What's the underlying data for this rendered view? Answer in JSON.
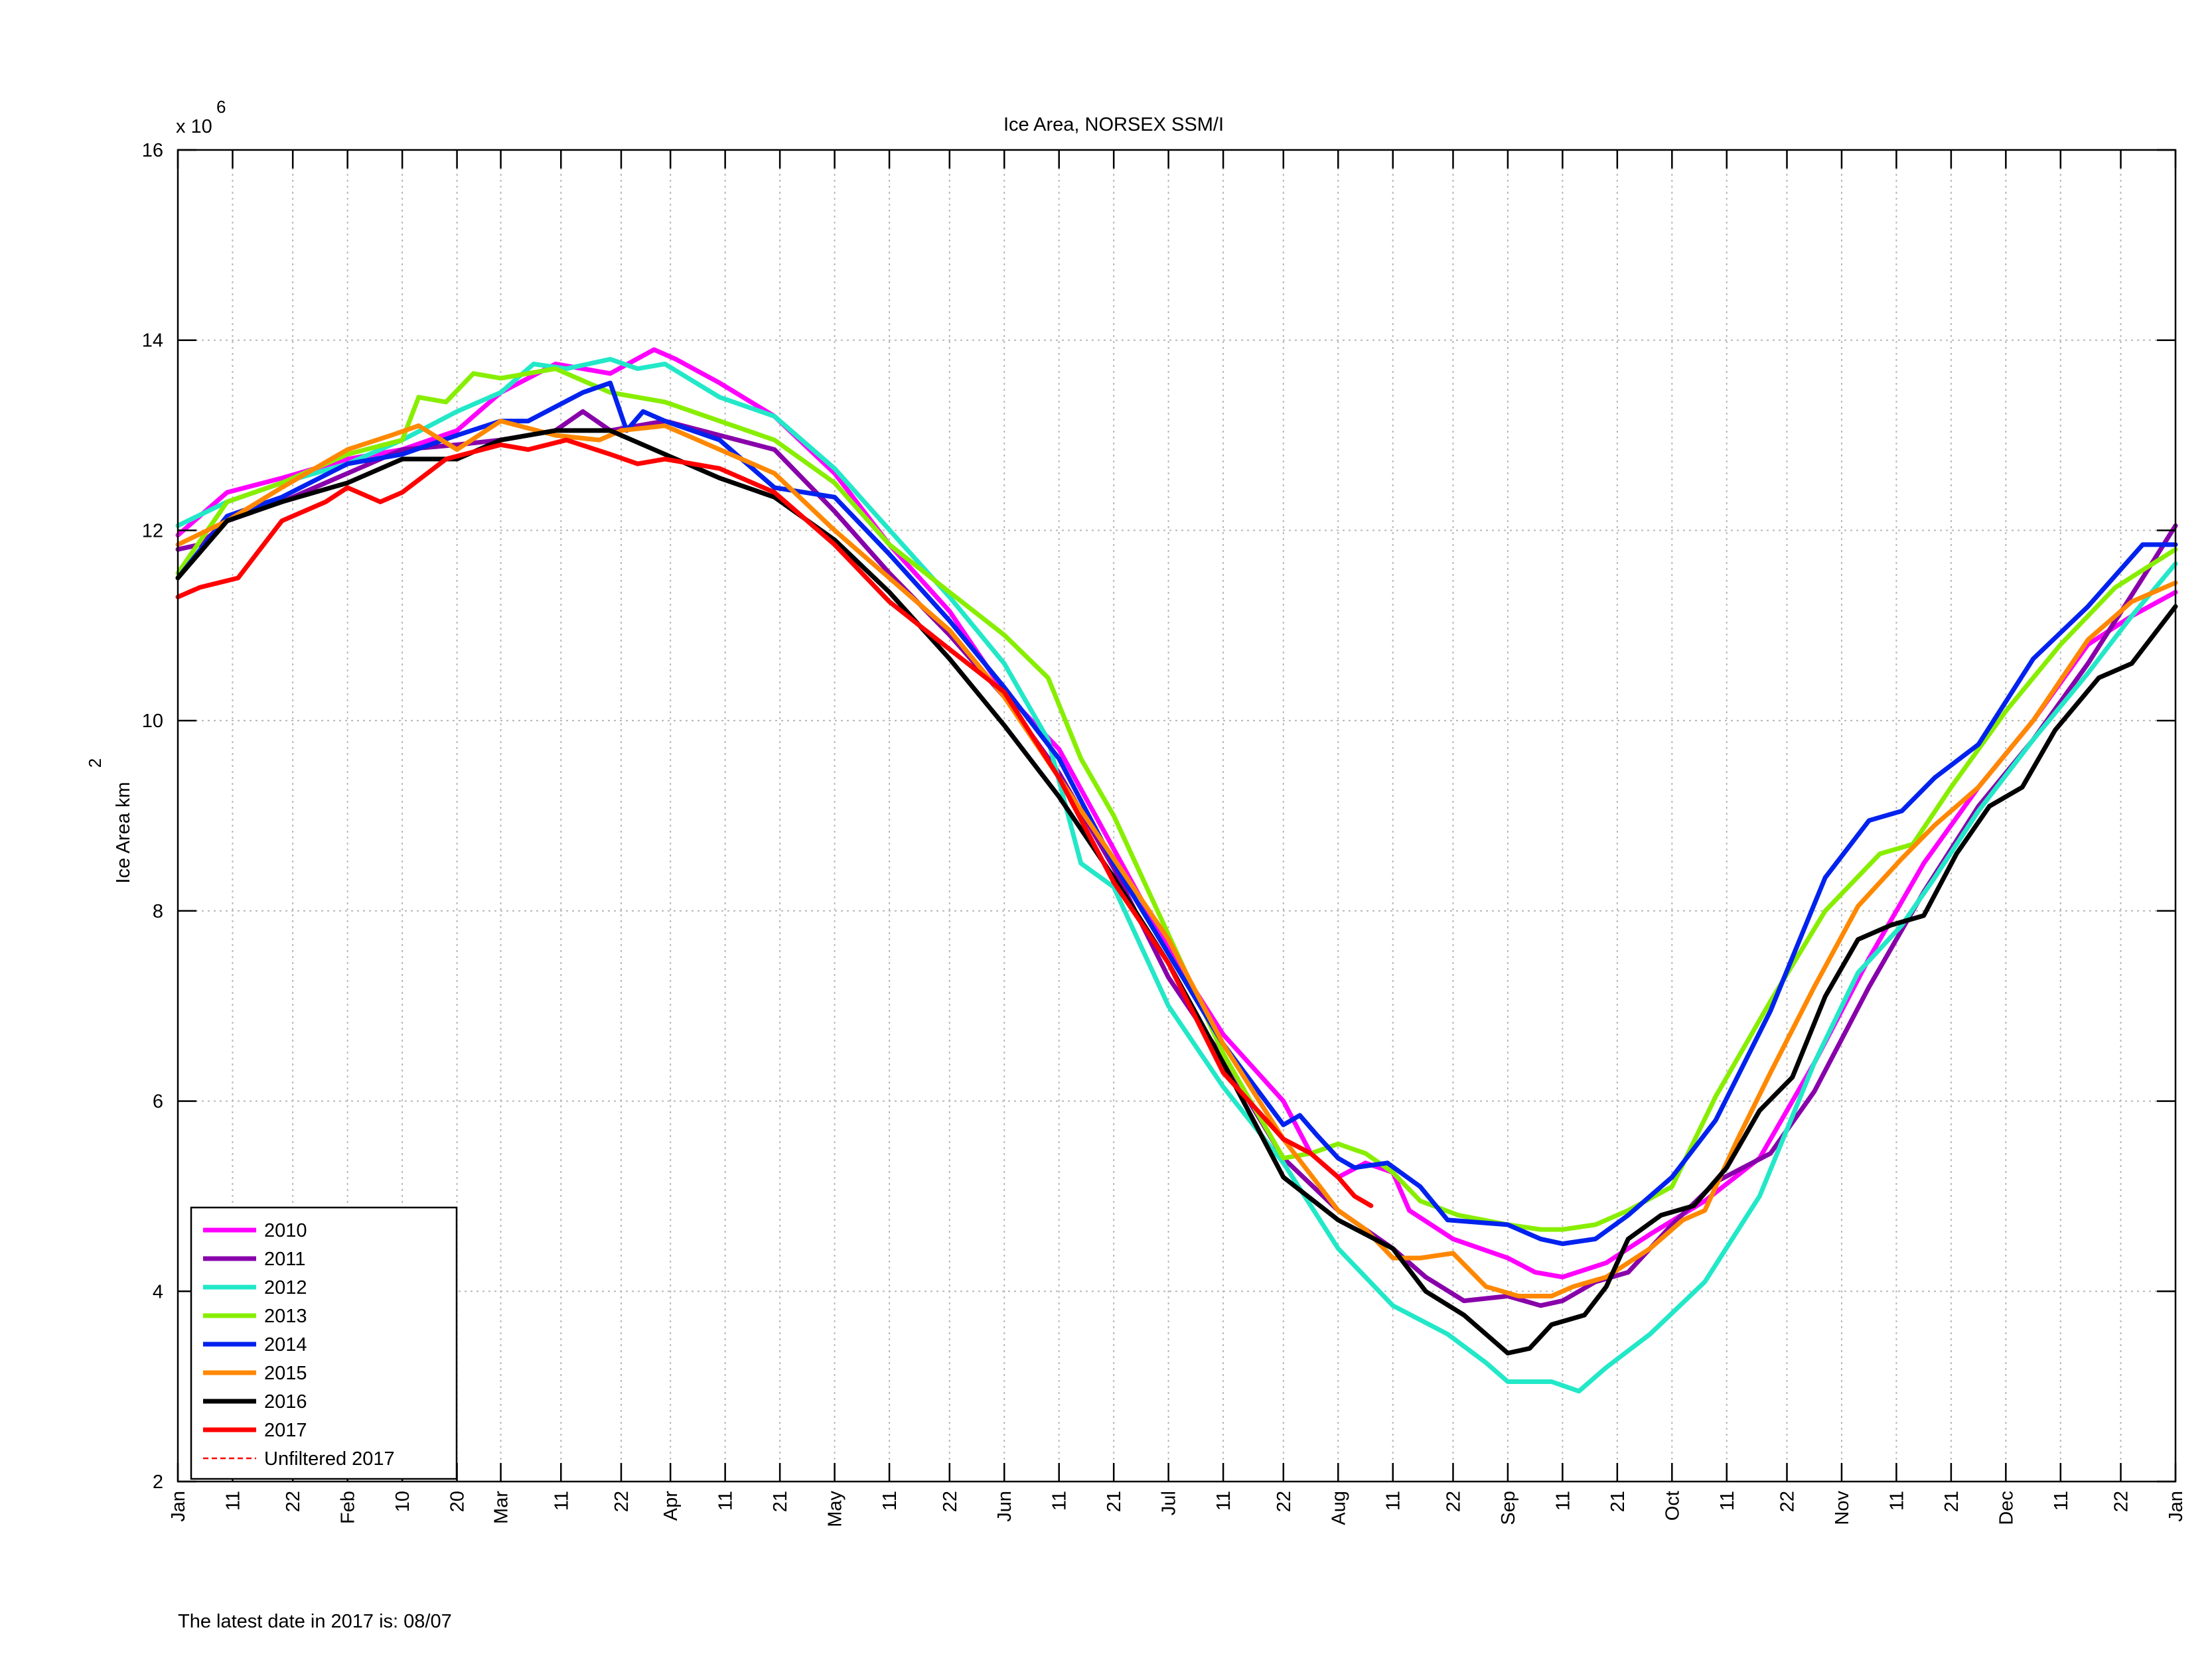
{
  "footer_note": "The latest date in 2017 is: 08/07",
  "chart_data": {
    "type": "line",
    "title": "Ice Area, NORSEX SSM/I",
    "xlabel": "",
    "ylabel": "Ice Area km",
    "ylabel_superscript": "2",
    "y_multiplier_label": "x 10",
    "y_multiplier_exponent": "6",
    "x_unit": "day of year",
    "xlim": [
      1,
      366
    ],
    "ylim": [
      2,
      16
    ],
    "y_unit_scale": 1000000,
    "grid": true,
    "legend_position": "bottom-left",
    "x_ticks": [
      {
        "day": 1,
        "label": "Jan"
      },
      {
        "day": 11,
        "label": "11"
      },
      {
        "day": 22,
        "label": "22"
      },
      {
        "day": 32,
        "label": "Feb"
      },
      {
        "day": 42,
        "label": "10"
      },
      {
        "day": 52,
        "label": "20"
      },
      {
        "day": 60,
        "label": "Mar"
      },
      {
        "day": 71,
        "label": "11"
      },
      {
        "day": 82,
        "label": "22"
      },
      {
        "day": 91,
        "label": "Apr"
      },
      {
        "day": 101,
        "label": "11"
      },
      {
        "day": 111,
        "label": "21"
      },
      {
        "day": 121,
        "label": "May"
      },
      {
        "day": 131,
        "label": "11"
      },
      {
        "day": 142,
        "label": "22"
      },
      {
        "day": 152,
        "label": "Jun"
      },
      {
        "day": 162,
        "label": "11"
      },
      {
        "day": 172,
        "label": "21"
      },
      {
        "day": 182,
        "label": "Jul"
      },
      {
        "day": 192,
        "label": "11"
      },
      {
        "day": 203,
        "label": "22"
      },
      {
        "day": 213,
        "label": "Aug"
      },
      {
        "day": 223,
        "label": "11"
      },
      {
        "day": 234,
        "label": "22"
      },
      {
        "day": 244,
        "label": "Sep"
      },
      {
        "day": 254,
        "label": "11"
      },
      {
        "day": 264,
        "label": "21"
      },
      {
        "day": 274,
        "label": "Oct"
      },
      {
        "day": 284,
        "label": "11"
      },
      {
        "day": 295,
        "label": "22"
      },
      {
        "day": 305,
        "label": "Nov"
      },
      {
        "day": 315,
        "label": "11"
      },
      {
        "day": 325,
        "label": "21"
      },
      {
        "day": 335,
        "label": "Dec"
      },
      {
        "day": 345,
        "label": "11"
      },
      {
        "day": 356,
        "label": "22"
      },
      {
        "day": 366,
        "label": "Jan"
      }
    ],
    "y_ticks": [
      2,
      4,
      6,
      8,
      10,
      12,
      14,
      16
    ],
    "series": [
      {
        "name": "2010",
        "color": "#ff00ff",
        "x": [
          1,
          10,
          20,
          32,
          42,
          52,
          60,
          70,
          80,
          88,
          92,
          100,
          110,
          121,
          131,
          142,
          152,
          162,
          172,
          182,
          192,
          203,
          208,
          213,
          218,
          223,
          226,
          234,
          244,
          249,
          254,
          262,
          270,
          280,
          290,
          300,
          310,
          320,
          330,
          340,
          350,
          358,
          366
        ],
        "y": [
          11.95,
          12.4,
          12.55,
          12.75,
          12.85,
          13.05,
          13.45,
          13.75,
          13.65,
          13.9,
          13.8,
          13.55,
          13.2,
          12.6,
          11.85,
          11.15,
          10.3,
          9.7,
          8.65,
          7.6,
          6.7,
          6.0,
          5.45,
          5.2,
          5.35,
          5.25,
          4.85,
          4.55,
          4.35,
          4.2,
          4.15,
          4.3,
          4.6,
          4.95,
          5.4,
          6.4,
          7.5,
          8.5,
          9.3,
          10.0,
          10.8,
          11.1,
          11.35
        ]
      },
      {
        "name": "2011",
        "color": "#8800aa",
        "x": [
          1,
          5,
          10,
          20,
          32,
          42,
          52,
          60,
          70,
          75,
          80,
          90,
          100,
          110,
          121,
          131,
          142,
          152,
          162,
          172,
          182,
          192,
          203,
          213,
          223,
          229,
          236,
          244,
          250,
          254,
          260,
          266,
          274,
          282,
          292,
          300,
          310,
          320,
          330,
          340,
          350,
          360,
          366
        ],
        "y": [
          11.8,
          11.85,
          12.1,
          12.3,
          12.6,
          12.85,
          12.9,
          12.95,
          13.05,
          13.25,
          13.05,
          13.15,
          13.0,
          12.85,
          12.2,
          11.55,
          10.9,
          10.25,
          9.45,
          8.45,
          7.3,
          6.45,
          5.4,
          4.85,
          4.45,
          4.15,
          3.9,
          3.95,
          3.85,
          3.9,
          4.1,
          4.2,
          4.7,
          5.15,
          5.45,
          6.1,
          7.2,
          8.2,
          9.1,
          9.8,
          10.6,
          11.5,
          12.05
        ]
      },
      {
        "name": "2012",
        "color": "#22e8c8",
        "x": [
          1,
          10,
          20,
          32,
          42,
          52,
          60,
          66,
          72,
          80,
          85,
          90,
          100,
          110,
          121,
          128,
          135,
          142,
          152,
          160,
          166,
          172,
          182,
          192,
          203,
          213,
          223,
          233,
          240,
          244,
          248,
          252,
          257,
          262,
          270,
          280,
          290,
          300,
          308,
          316,
          322,
          330,
          340,
          350,
          358,
          366
        ],
        "y": [
          12.05,
          12.3,
          12.5,
          12.7,
          12.95,
          13.25,
          13.45,
          13.75,
          13.7,
          13.8,
          13.7,
          13.75,
          13.4,
          13.2,
          12.65,
          12.2,
          11.75,
          11.3,
          10.6,
          9.8,
          8.5,
          8.25,
          7.0,
          6.15,
          5.35,
          4.45,
          3.85,
          3.55,
          3.25,
          3.05,
          3.05,
          3.05,
          2.95,
          3.2,
          3.55,
          4.1,
          5.0,
          6.4,
          7.35,
          7.85,
          8.35,
          9.05,
          9.8,
          10.5,
          11.1,
          11.65
        ]
      },
      {
        "name": "2013",
        "color": "#88ee00",
        "x": [
          1,
          10,
          20,
          32,
          42,
          45,
          50,
          55,
          60,
          70,
          80,
          90,
          100,
          110,
          121,
          131,
          142,
          152,
          160,
          166,
          172,
          182,
          192,
          203,
          208,
          213,
          218,
          223,
          228,
          235,
          244,
          250,
          254,
          260,
          266,
          274,
          282,
          292,
          302,
          312,
          318,
          325,
          335,
          345,
          355,
          366
        ],
        "y": [
          11.55,
          12.3,
          12.5,
          12.8,
          12.95,
          13.4,
          13.35,
          13.65,
          13.6,
          13.7,
          13.45,
          13.35,
          13.15,
          12.95,
          12.5,
          11.85,
          11.35,
          10.9,
          10.45,
          9.6,
          9.0,
          7.75,
          6.5,
          5.4,
          5.45,
          5.55,
          5.45,
          5.25,
          4.95,
          4.8,
          4.7,
          4.65,
          4.65,
          4.7,
          4.85,
          5.1,
          6.05,
          7.05,
          8.0,
          8.6,
          8.7,
          9.3,
          10.1,
          10.8,
          11.4,
          11.8
        ]
      },
      {
        "name": "2014",
        "color": "#0022ee",
        "x": [
          1,
          10,
          20,
          32,
          42,
          52,
          60,
          65,
          70,
          75,
          80,
          83,
          86,
          90,
          100,
          110,
          121,
          131,
          142,
          152,
          162,
          172,
          182,
          192,
          203,
          206,
          209,
          213,
          216,
          222,
          228,
          233,
          244,
          250,
          254,
          260,
          266,
          274,
          282,
          292,
          302,
          310,
          316,
          322,
          330,
          340,
          350,
          360,
          366
        ],
        "y": [
          11.5,
          12.15,
          12.35,
          12.7,
          12.8,
          13.0,
          13.15,
          13.15,
          13.3,
          13.45,
          13.55,
          13.05,
          13.25,
          13.15,
          12.95,
          12.45,
          12.35,
          11.75,
          11.05,
          10.35,
          9.6,
          8.5,
          7.55,
          6.6,
          5.75,
          5.85,
          5.65,
          5.4,
          5.3,
          5.35,
          5.1,
          4.75,
          4.7,
          4.55,
          4.5,
          4.55,
          4.8,
          5.2,
          5.8,
          6.95,
          8.35,
          8.95,
          9.05,
          9.4,
          9.75,
          10.65,
          11.2,
          11.85,
          11.85
        ]
      },
      {
        "name": "2015",
        "color": "#ff8800",
        "x": [
          1,
          10,
          20,
          32,
          40,
          45,
          52,
          60,
          70,
          78,
          82,
          90,
          100,
          110,
          121,
          131,
          142,
          152,
          162,
          172,
          182,
          192,
          203,
          213,
          218,
          223,
          228,
          234,
          240,
          246,
          252,
          256,
          262,
          270,
          276,
          280,
          286,
          292,
          300,
          308,
          316,
          322,
          330,
          340,
          350,
          358,
          366
        ],
        "y": [
          11.85,
          12.1,
          12.45,
          12.85,
          13.0,
          13.1,
          12.85,
          13.15,
          13.0,
          12.95,
          13.05,
          13.1,
          12.85,
          12.6,
          12.0,
          11.5,
          10.95,
          10.25,
          9.4,
          8.55,
          7.7,
          6.6,
          5.6,
          4.85,
          4.65,
          4.35,
          4.35,
          4.4,
          4.05,
          3.95,
          3.95,
          4.05,
          4.15,
          4.45,
          4.75,
          4.85,
          5.6,
          6.3,
          7.2,
          8.05,
          8.55,
          8.9,
          9.3,
          10.0,
          10.85,
          11.25,
          11.45
        ]
      },
      {
        "name": "2016",
        "color": "#000000",
        "x": [
          1,
          10,
          20,
          32,
          42,
          52,
          60,
          70,
          80,
          90,
          100,
          110,
          121,
          131,
          142,
          152,
          162,
          172,
          182,
          192,
          203,
          213,
          223,
          229,
          236,
          241,
          244,
          248,
          252,
          258,
          262,
          266,
          272,
          278,
          284,
          290,
          296,
          302,
          308,
          314,
          320,
          326,
          332,
          338,
          344,
          352,
          358,
          366
        ],
        "y": [
          11.5,
          12.1,
          12.3,
          12.5,
          12.75,
          12.75,
          12.95,
          13.05,
          13.05,
          12.8,
          12.55,
          12.35,
          11.9,
          11.35,
          10.65,
          9.95,
          9.2,
          8.35,
          7.45,
          6.4,
          5.2,
          4.75,
          4.45,
          4.0,
          3.75,
          3.5,
          3.35,
          3.4,
          3.65,
          3.75,
          4.05,
          4.55,
          4.8,
          4.9,
          5.3,
          5.9,
          6.25,
          7.1,
          7.7,
          7.85,
          7.95,
          8.6,
          9.1,
          9.3,
          9.9,
          10.45,
          10.6,
          11.2
        ]
      },
      {
        "name": "2017",
        "color": "#ff0000",
        "x": [
          1,
          5,
          12,
          20,
          28,
          32,
          38,
          42,
          50,
          60,
          65,
          72,
          80,
          85,
          90,
          100,
          110,
          121,
          131,
          142,
          152,
          162,
          172,
          182,
          192,
          203,
          208,
          213,
          216,
          219
        ],
        "y": [
          11.3,
          11.4,
          11.5,
          12.1,
          12.3,
          12.45,
          12.3,
          12.4,
          12.75,
          12.9,
          12.85,
          12.95,
          12.8,
          12.7,
          12.75,
          12.65,
          12.4,
          11.85,
          11.25,
          10.75,
          10.3,
          9.4,
          8.3,
          7.45,
          6.3,
          5.6,
          5.45,
          5.2,
          5.0,
          4.9
        ]
      },
      {
        "name": "Unfiltered 2017",
        "color": "#ff0000",
        "dashed": true,
        "x": [
          1,
          5,
          12,
          20,
          28,
          32,
          38,
          42,
          50,
          60,
          65,
          72,
          80,
          85,
          90,
          100,
          110,
          121,
          131,
          142,
          152,
          162,
          172,
          182,
          192,
          203,
          208,
          213,
          216,
          219
        ],
        "y": [
          11.3,
          11.4,
          11.5,
          12.1,
          12.3,
          12.45,
          12.3,
          12.4,
          12.75,
          12.9,
          12.85,
          12.95,
          12.8,
          12.7,
          12.75,
          12.65,
          12.4,
          11.85,
          11.25,
          10.75,
          10.3,
          9.4,
          8.3,
          7.45,
          6.3,
          5.6,
          5.45,
          5.2,
          5.0,
          4.9
        ]
      }
    ]
  }
}
